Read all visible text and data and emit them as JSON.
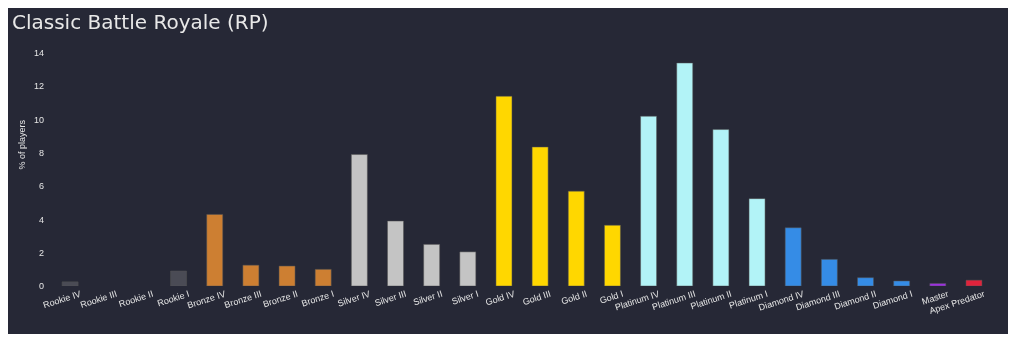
{
  "chart_data": {
    "type": "bar",
    "title": "Classic Battle Royale (RP)",
    "ylabel": "% of players",
    "categories": [
      "Rookie IV",
      "Rookie III",
      "Rookie II",
      "Rookie I",
      "Bronze IV",
      "Bronze III",
      "Bronze II",
      "Bronze I",
      "Silver IV",
      "Silver III",
      "Silver II",
      "Silver I",
      "Gold IV",
      "Gold III",
      "Gold II",
      "Gold I",
      "Platinum IV",
      "Platinum III",
      "Platinum II",
      "Platinum I",
      "Diamond IV",
      "Diamond III",
      "Diamond II",
      "Diamond I",
      "Master",
      "Apex Predator"
    ],
    "values": [
      0.25,
      0,
      0,
      0.9,
      4.3,
      1.25,
      1.2,
      1.0,
      7.9,
      3.9,
      2.5,
      2.05,
      11.4,
      8.35,
      5.7,
      3.65,
      10.2,
      13.4,
      9.4,
      5.25,
      3.5,
      1.6,
      0.5,
      0.3,
      0.15,
      0.35
    ],
    "colors": [
      "#4a4b55",
      "#4a4b55",
      "#4a4b55",
      "#4a4b55",
      "#cd7f32",
      "#cd7f32",
      "#cd7f32",
      "#cd7f32",
      "#c4c4c4",
      "#c4c4c4",
      "#c4c4c4",
      "#c4c4c4",
      "#ffd700",
      "#ffd700",
      "#ffd700",
      "#ffd700",
      "#b2f3f7",
      "#b2f3f7",
      "#b2f3f7",
      "#b2f3f7",
      "#358ce6",
      "#358ce6",
      "#358ce6",
      "#358ce6",
      "#9b30e0",
      "#e0233c"
    ],
    "ylim": [
      0,
      14
    ],
    "yticks": [
      0,
      2,
      4,
      6,
      8,
      10,
      12,
      14
    ]
  }
}
